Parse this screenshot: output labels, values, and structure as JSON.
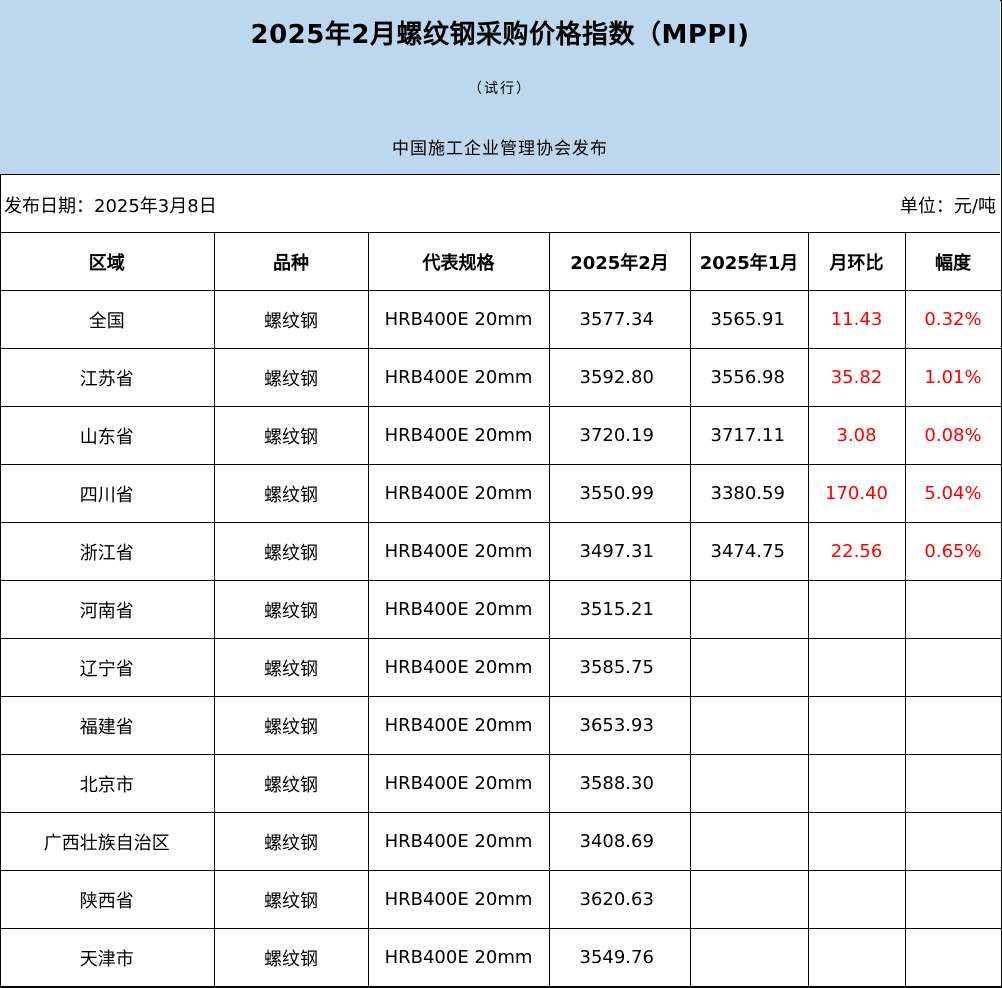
{
  "header": {
    "title": "2025年2月螺纹钢采购价格指数（MPPI)",
    "subtitle": "（试行）",
    "publisher": "中国施工企业管理协会发布"
  },
  "info": {
    "publish_date": "发布日期：2025年3月8日",
    "unit": "单位：元/吨"
  },
  "table": {
    "headers": [
      "区域",
      "品种",
      "代表规格",
      "2025年2月",
      "2025年1月",
      "月环比",
      "幅度"
    ],
    "rows": [
      [
        "全国",
        "螺纹钢",
        "HRB400E 20mm",
        "3577.34",
        "3565.91",
        "11.43",
        "0.32%"
      ],
      [
        "江苏省",
        "螺纹钢",
        "HRB400E 20mm",
        "3592.80",
        "3556.98",
        "35.82",
        "1.01%"
      ],
      [
        "山东省",
        "螺纹钢",
        "HRB400E 20mm",
        "3720.19",
        "3717.11",
        "3.08",
        "0.08%"
      ],
      [
        "四川省",
        "螺纹钢",
        "HRB400E 20mm",
        "3550.99",
        "3380.59",
        "170.40",
        "5.04%"
      ],
      [
        "浙江省",
        "螺纹钢",
        "HRB400E 20mm",
        "3497.31",
        "3474.75",
        "22.56",
        "0.65%"
      ],
      [
        "河南省",
        "螺纹钢",
        "HRB400E 20mm",
        "3515.21",
        "",
        "",
        ""
      ],
      [
        "辽宁省",
        "螺纹钢",
        "HRB400E 20mm",
        "3585.75",
        "",
        "",
        ""
      ],
      [
        "福建省",
        "螺纹钢",
        "HRB400E 20mm",
        "3653.93",
        "",
        "",
        ""
      ],
      [
        "北京市",
        "螺纹钢",
        "HRB400E 20mm",
        "3588.30",
        "",
        "",
        ""
      ],
      [
        "广西壮族自治区",
        "螺纹钢",
        "HRB400E 20mm",
        "3408.69",
        "",
        "",
        ""
      ],
      [
        "陕西省",
        "螺纹钢",
        "HRB400E 20mm",
        "3620.63",
        "",
        "",
        ""
      ],
      [
        "天津市",
        "螺纹钢",
        "HRB400E 20mm",
        "3549.76",
        "",
        "",
        ""
      ]
    ]
  },
  "colors": {
    "header_bg": "#bdd7ee",
    "change_text": "#ff0000"
  }
}
